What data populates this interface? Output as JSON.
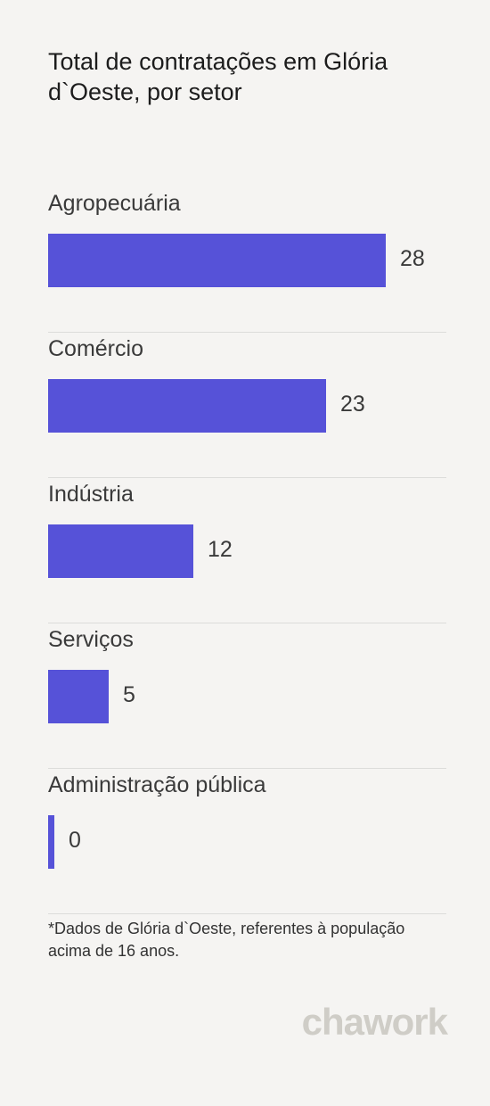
{
  "title": "Total de contratações em Glória d`Oeste, por setor",
  "chart_data": {
    "type": "bar",
    "orientation": "horizontal",
    "title": "Total de contratações em Glória d`Oeste, por setor",
    "categories": [
      "Agropecuária",
      "Comércio",
      "Indústria",
      "Serviços",
      "Administração pública"
    ],
    "values": [
      28,
      23,
      12,
      5,
      0
    ],
    "xlim": [
      0,
      33
    ],
    "bar_color": "#5652d8",
    "grid": false
  },
  "footnote": "*Dados de Glória d`Oeste, referentes à população acima de 16 anos.",
  "logo": "chawork",
  "colors": {
    "background": "#f5f4f2",
    "bar": "#5652d8",
    "logo": "#cfcdc7"
  }
}
